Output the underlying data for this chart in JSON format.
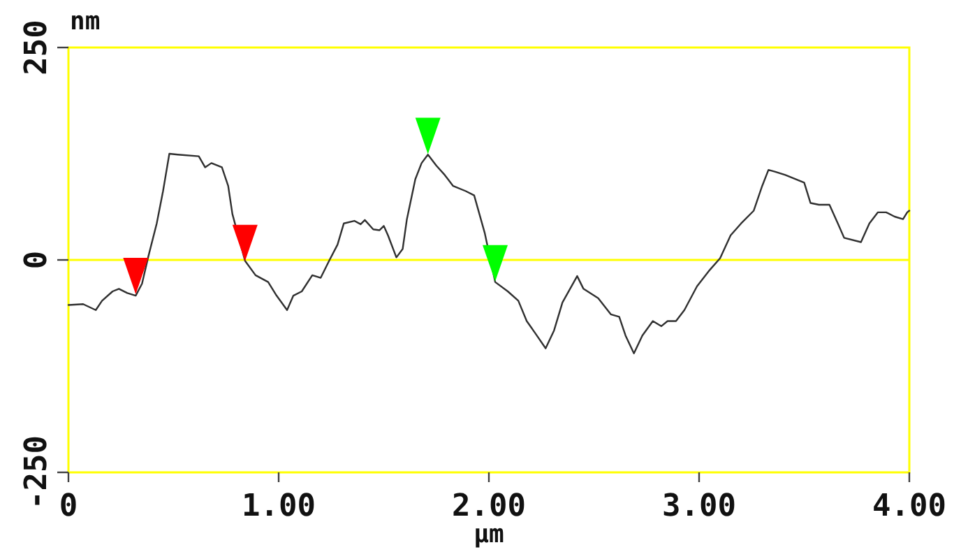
{
  "chart_data": {
    "type": "line",
    "xlabel": "µm",
    "ylabel": "nm",
    "xlim": [
      0,
      4
    ],
    "xticks": [
      0,
      {
        "value": 1,
        "label": "1.00"
      },
      {
        "value": 2,
        "label": "2.00"
      },
      {
        "value": 3,
        "label": "3.00"
      },
      {
        "value": 4,
        "label": "4.00"
      }
    ],
    "ylim": [
      -250,
      250
    ],
    "yticks": [
      -250,
      0,
      250
    ],
    "ref_lines": [
      {
        "axis": "y",
        "value": 0,
        "color": "#ffff00"
      }
    ],
    "series": [
      {
        "color": "#303030",
        "line_style": "solid",
        "x": [
          0,
          0.07,
          0.13,
          0.16,
          0.21,
          0.24,
          0.28,
          0.32,
          0.35,
          0.38,
          0.42,
          0.45,
          0.48,
          0.52,
          0.62,
          0.65,
          0.68,
          0.73,
          0.76,
          0.78,
          0.84,
          0.89,
          0.95,
          0.99,
          1.04,
          1.07,
          1.11,
          1.16,
          1.2,
          1.24,
          1.28,
          1.31,
          1.36,
          1.39,
          1.41,
          1.45,
          1.48,
          1.5,
          1.52,
          1.56,
          1.59,
          1.61,
          1.65,
          1.68,
          1.71,
          1.75,
          1.79,
          1.83,
          1.89,
          1.93,
          1.98,
          2.03,
          2.09,
          2.14,
          2.18,
          2.22,
          2.27,
          2.31,
          2.35,
          2.42,
          2.45,
          2.52,
          2.58,
          2.62,
          2.65,
          2.69,
          2.73,
          2.78,
          2.82,
          2.85,
          2.89,
          2.93,
          2.99,
          3.05,
          3.1,
          3.15,
          3.2,
          3.26,
          3.3,
          3.33,
          3.36,
          3.41,
          3.5,
          3.53,
          3.57,
          3.62,
          3.66,
          3.69,
          3.77,
          3.81,
          3.85,
          3.89,
          3.93,
          3.97,
          3.99,
          4
        ],
        "values": [
          -53,
          -52,
          -59,
          -48,
          -37,
          -34,
          -39,
          -42,
          -28,
          4,
          43,
          81,
          125,
          124,
          122,
          109,
          114,
          109,
          87,
          54,
          -1,
          -18,
          -26,
          -42,
          -59,
          -42,
          -37,
          -18,
          -21,
          -1,
          18,
          43,
          46,
          42,
          47,
          36,
          35,
          40,
          29,
          3,
          13,
          48,
          95,
          114,
          124,
          111,
          100,
          87,
          81,
          76,
          32,
          -26,
          -37,
          -48,
          -72,
          -86,
          -104,
          -83,
          -50,
          -19,
          -34,
          -45,
          -64,
          -67,
          -89,
          -110,
          -89,
          -72,
          -78,
          -72,
          -72,
          -59,
          -31,
          -12,
          2,
          29,
          43,
          58,
          87,
          106,
          104,
          100,
          91,
          67,
          65,
          65,
          43,
          26,
          21,
          43,
          56,
          56,
          51,
          48,
          56,
          58
        ]
      },
      {
        "type": "scatter",
        "color": "#ff0000",
        "marker": "triangle",
        "x": [
          0.32,
          0.84
        ],
        "values": [
          -19,
          20
        ]
      },
      {
        "type": "scatter",
        "color": "#00ff00",
        "marker": "triangle",
        "x": [
          1.71,
          2.03
        ],
        "values": [
          146,
          -4
        ]
      }
    ]
  }
}
